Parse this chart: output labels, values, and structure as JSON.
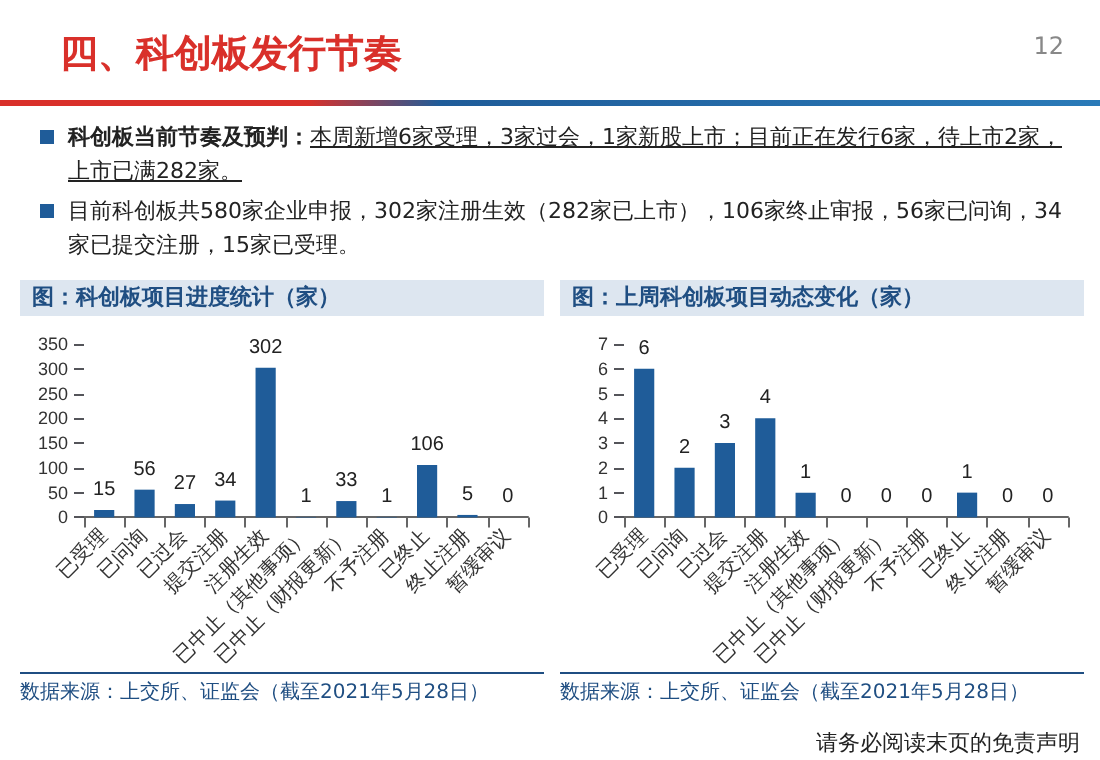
{
  "chart_data": [
    {
      "type": "bar",
      "title": "图：科创板项目进度统计（家）",
      "categories": [
        "已受理",
        "已问询",
        "已过会",
        "提交注册",
        "注册生效",
        "已中止（其他事项）",
        "已中止（财报更新）",
        "不予注册",
        "已终止",
        "终止注册",
        "暂缓审议"
      ],
      "values": [
        15,
        56,
        27,
        34,
        302,
        1,
        33,
        1,
        106,
        5,
        0
      ],
      "color": "#1f5c99",
      "ylim": [
        0,
        350
      ],
      "yticks": [
        0,
        50,
        100,
        150,
        200,
        250,
        300,
        350
      ],
      "grid": false,
      "data_labels": true,
      "annotations": [
        "四、科创板发行节奏",
        "12",
        "科创板当前节奏及预判：",
        "本周新增6家受理，3家过会，1家新股上市；目前正在发行6家，待上市2家，上市已满282家。",
        "目前科创板共580家企业申报，302家注册生效（282家已上市），106家终止审报，56家已问询，34家已提交注册，15家已受理。",
        "数据来源：上交所、证监会（截至2021年5月28日）"
      ]
    },
    {
      "type": "bar",
      "title": "图：上周科创板项目动态变化（家）",
      "categories": [
        "已受理",
        "已问询",
        "已过会",
        "提交注册",
        "注册生效",
        "已中止（其他事项）",
        "已中止（财报更新）",
        "不予注册",
        "已终止",
        "终止注册",
        "暂缓审议"
      ],
      "values": [
        6,
        2,
        3,
        4,
        1,
        0,
        0,
        0,
        1,
        0,
        0
      ],
      "color": "#1f5c99",
      "ylim": [
        0,
        7
      ],
      "yticks": [
        0,
        1,
        2,
        3,
        4,
        5,
        6,
        7
      ],
      "grid": false,
      "data_labels": true,
      "annotations": [
        "数据来源：上交所、证监会（截至2021年5月28日）",
        "请务必阅读末页的免责声明"
      ]
    }
  ]
}
